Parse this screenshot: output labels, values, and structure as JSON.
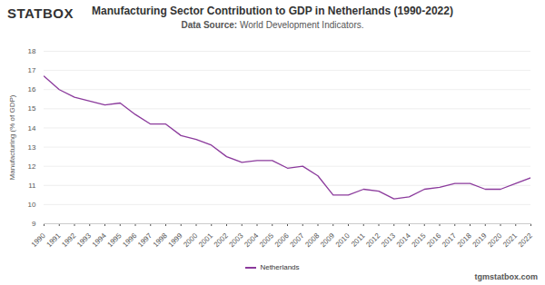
{
  "chart_data": {
    "type": "line",
    "title": "Manufacturing Sector Contribution to GDP in Netherlands (1990-2022)",
    "subtitle_label": "Data Source:",
    "subtitle": "World Development Indicators.",
    "brand": "STATBOX",
    "source_url": "tgmstatbox.com",
    "y_label": "Manufacturing (% of GDP)",
    "x": [
      1990,
      1991,
      1992,
      1993,
      1994,
      1995,
      1996,
      1997,
      1998,
      1999,
      2000,
      2001,
      2002,
      2003,
      2004,
      2005,
      2006,
      2007,
      2008,
      2009,
      2010,
      2011,
      2012,
      2013,
      2014,
      2015,
      2016,
      2017,
      2018,
      2019,
      2020,
      2021,
      2022
    ],
    "series": [
      {
        "name": "Netherlands",
        "color": "#8b3a9c",
        "values": [
          16.7,
          16.0,
          15.6,
          15.4,
          15.2,
          15.3,
          14.7,
          14.2,
          14.2,
          13.6,
          13.4,
          13.1,
          12.5,
          12.2,
          12.3,
          12.3,
          11.9,
          12.0,
          11.5,
          10.5,
          10.5,
          10.8,
          10.7,
          10.3,
          10.4,
          10.8,
          10.9,
          11.1,
          11.1,
          10.8,
          10.8,
          11.1,
          11.4
        ]
      }
    ],
    "xlim": [
      1990,
      2022
    ],
    "xticks": [
      1990,
      1991,
      1992,
      1993,
      1994,
      1995,
      1996,
      1997,
      1998,
      1999,
      2000,
      2001,
      2002,
      2003,
      2004,
      2005,
      2006,
      2007,
      2008,
      2009,
      2010,
      2011,
      2012,
      2013,
      2014,
      2015,
      2016,
      2017,
      2018,
      2019,
      2020,
      2021,
      2022
    ],
    "ylim": [
      9,
      18
    ],
    "yticks": [
      9,
      10,
      11,
      12,
      13,
      14,
      15,
      16,
      17,
      18
    ],
    "grid": true,
    "legend": "bottom"
  }
}
